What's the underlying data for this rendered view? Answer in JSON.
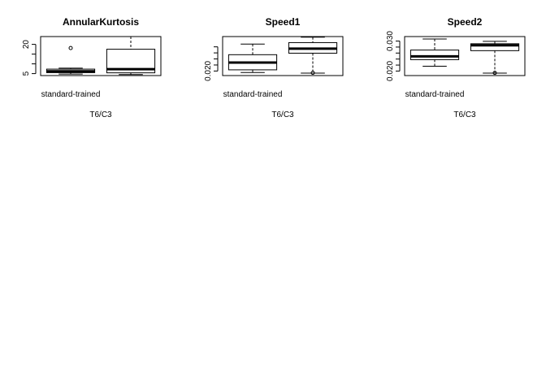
{
  "chart_data": [
    {
      "type": "boxplot",
      "title": "AnnularKurtosis",
      "xlabel": "T6/C3",
      "ylabel": "",
      "categories": [
        "standard-trained",
        ""
      ],
      "ylim": [
        4,
        24
      ],
      "yticks": [
        5,
        10,
        15,
        20
      ],
      "ytick_labels": [
        "5",
        "",
        "",
        "20"
      ],
      "boxes": [
        {
          "name": "standard-trained",
          "whisker_low": 4.8,
          "q1": 5.5,
          "median": 6.2,
          "q3": 7.3,
          "whisker_high": 7.8,
          "outliers": [
            18.1
          ]
        },
        {
          "name": "",
          "whisker_low": 4.5,
          "q1": 5.4,
          "median": 7.3,
          "q3": 17.5,
          "whisker_high": 24.0,
          "outliers": []
        }
      ]
    },
    {
      "type": "boxplot",
      "title": "Speed1",
      "xlabel": "T6/C3",
      "ylabel": "",
      "categories": [
        "standard-trained",
        ""
      ],
      "ylim": [
        0.0185,
        0.0314
      ],
      "yticks": [
        0.02,
        0.022,
        0.024,
        0.026,
        0.028
      ],
      "ytick_labels": [
        "0.020",
        "",
        "",
        "",
        ""
      ],
      "boxes": [
        {
          "name": "standard-trained",
          "whisker_low": 0.0195,
          "q1": 0.0204,
          "median": 0.0228,
          "q3": 0.0254,
          "whisker_high": 0.0289,
          "outliers": []
        },
        {
          "name": "",
          "whisker_low": 0.0193,
          "q1": 0.0259,
          "median": 0.0274,
          "q3": 0.0294,
          "whisker_high": 0.0312,
          "outliers": [
            0.0194
          ]
        }
      ]
    },
    {
      "type": "boxplot",
      "title": "Speed2",
      "xlabel": "T6/C3",
      "ylabel": "",
      "categories": [
        "standard-trained",
        ""
      ],
      "ylim": [
        0.0185,
        0.0315
      ],
      "yticks": [
        0.02,
        0.022,
        0.024,
        0.026,
        0.028,
        0.03
      ],
      "ytick_labels": [
        "0.020",
        "",
        "",
        "",
        "",
        "0.030"
      ],
      "boxes": [
        {
          "name": "standard-trained",
          "whisker_low": 0.0216,
          "q1": 0.0238,
          "median": 0.0249,
          "q3": 0.027,
          "whisker_high": 0.0307,
          "outliers": []
        },
        {
          "name": "",
          "whisker_low": 0.0193,
          "q1": 0.0268,
          "median": 0.0286,
          "q3": 0.0291,
          "whisker_high": 0.0299,
          "outliers": [
            0.0194
          ]
        }
      ]
    }
  ]
}
